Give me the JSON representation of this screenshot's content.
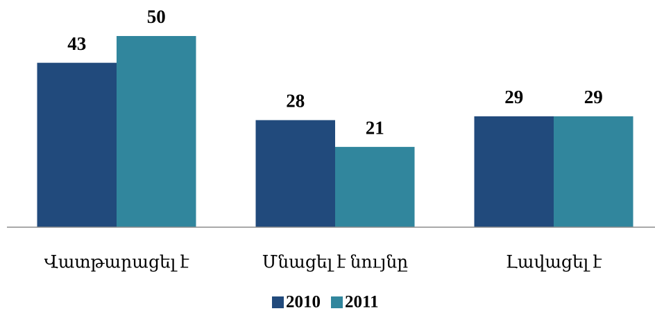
{
  "chart_data": {
    "type": "bar",
    "categories": [
      "Վատթարացել է",
      "Մնացել է նույնը",
      "Լավացել է"
    ],
    "series": [
      {
        "name": "2010",
        "color": "#214a7c",
        "values": [
          43,
          28,
          29
        ]
      },
      {
        "name": "2011",
        "color": "#31869d",
        "values": [
          50,
          21,
          29
        ]
      }
    ],
    "ylim": [
      0,
      55
    ],
    "legend": "bottom"
  }
}
